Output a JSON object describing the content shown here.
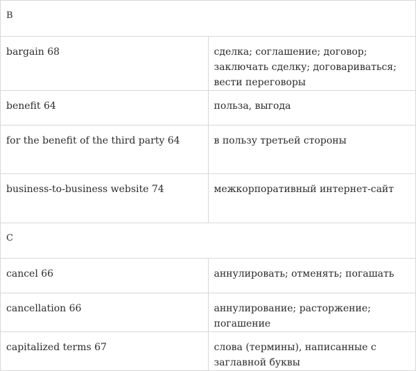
{
  "sections": [
    {
      "letter": "B",
      "rows": [
        {
          "term": "bargain 68",
          "translation": "сделка; соглашение; договор; заключать сделку; договариваться; вести переговоры"
        },
        {
          "term": "benefit 64",
          "translation": "польза, выгода"
        },
        {
          "term": "for the benefit of the third party 64",
          "translation": "в пользу третьей стороны"
        },
        {
          "term": "business-to-business website 74",
          "translation": "межкорпоративный интернет-сайт"
        }
      ]
    },
    {
      "letter": "C",
      "rows": [
        {
          "term": "cancel 66",
          "translation": "аннулировать; отменять; погашать"
        },
        {
          "term": "cancellation 66",
          "translation": "аннулирование; расторжение; погашение"
        },
        {
          "term": "capitalized terms 67",
          "translation": "слова (термины), написанные с заглавной буквы"
        }
      ]
    }
  ]
}
